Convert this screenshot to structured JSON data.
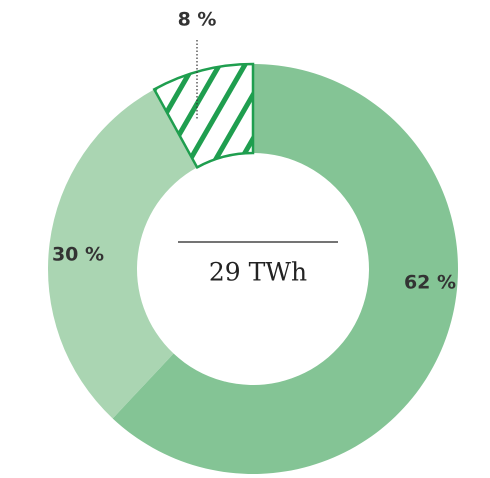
{
  "chart_data": {
    "type": "pie",
    "donut": true,
    "values": [
      62,
      30,
      8
    ],
    "value_labels": [
      "62 %",
      "30 %",
      "8 %"
    ],
    "colors": [
      "#84c495",
      "#aad5b2",
      "#1f9e4f"
    ],
    "hatch": [
      false,
      false,
      true
    ],
    "center_label": "29 TWh"
  }
}
